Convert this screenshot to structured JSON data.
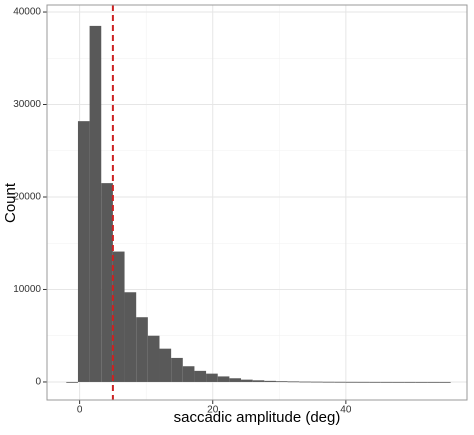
{
  "chart_data": {
    "type": "histogram",
    "x_label": "saccadic amplitude (deg)",
    "y_label": "Count",
    "bins": [
      -2,
      -0.25,
      1.5,
      3.25,
      5,
      6.75,
      8.5,
      10.25,
      12,
      13.75,
      15.5,
      17.25,
      19,
      20.75,
      22.5,
      24.25,
      26,
      27.75,
      29.5,
      31.25,
      33,
      34.75,
      36.5,
      38.25,
      40,
      41.75,
      43.5,
      45.25,
      47,
      48.75,
      50.5,
      52.25,
      54,
      55.75
    ],
    "values": [
      0,
      28200,
      38500,
      21500,
      14100,
      9700,
      7000,
      5000,
      3600,
      2600,
      1700,
      1200,
      900,
      600,
      400,
      250,
      180,
      120,
      80,
      60,
      40,
      30,
      20,
      15,
      10,
      8,
      5,
      4,
      3,
      2,
      1,
      1,
      0
    ],
    "color": "#595959",
    "vline": 5,
    "vline_color": "#cc2222",
    "xlim": [
      -4.9,
      58.2
    ],
    "xticks": [
      0,
      20,
      40
    ],
    "ylim": [
      -1950,
      40760
    ],
    "yticks": [
      0,
      10000,
      20000,
      30000,
      40000
    ],
    "grid": true
  }
}
